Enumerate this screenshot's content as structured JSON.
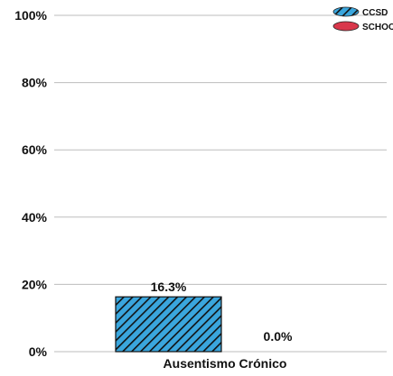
{
  "chart_data": {
    "type": "bar",
    "categories": [
      "Ausentismo Crónico"
    ],
    "series": [
      {
        "name": "CCSD",
        "values": [
          16.3
        ],
        "value_labels": [
          "16.3%"
        ],
        "color": "#3aa6dd",
        "pattern": "diagonal-hatch"
      },
      {
        "name": "SCHOO",
        "values": [
          0.0
        ],
        "value_labels": [
          "0.0%"
        ],
        "color": "#d9374b",
        "pattern": "solid"
      }
    ],
    "yticks": [
      "0%",
      "20%",
      "40%",
      "60%",
      "80%",
      "100%"
    ],
    "ytick_values": [
      0,
      20,
      40,
      60,
      80,
      100
    ],
    "ylim": [
      0,
      100
    ],
    "grid": true,
    "legend_position": "top-right",
    "title": "",
    "xlabel": "",
    "ylabel": ""
  }
}
